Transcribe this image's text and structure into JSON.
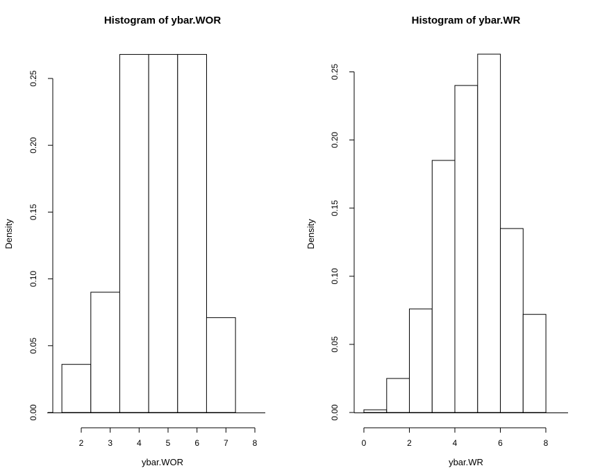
{
  "chart_data": [
    {
      "type": "bar",
      "title": "Histogram of ybar.WOR",
      "xlabel": "ybar.WOR",
      "ylabel": "Density",
      "x_ticks": [
        "2",
        "3",
        "4",
        "5",
        "6",
        "7",
        "8"
      ],
      "y_ticks": [
        "0.00",
        "0.05",
        "0.10",
        "0.15",
        "0.20",
        "0.25"
      ],
      "xlim": [
        1.5,
        8
      ],
      "ylim": [
        0,
        0.25
      ],
      "bins": [
        {
          "from": 1.33,
          "to": 2.33,
          "density": 0.036
        },
        {
          "from": 2.33,
          "to": 3.33,
          "density": 0.09
        },
        {
          "from": 3.33,
          "to": 4.33,
          "density": 0.268
        },
        {
          "from": 4.33,
          "to": 5.33,
          "density": 0.268
        },
        {
          "from": 5.33,
          "to": 6.33,
          "density": 0.268
        },
        {
          "from": 6.33,
          "to": 7.33,
          "density": 0.071
        }
      ]
    },
    {
      "type": "bar",
      "title": "Histogram of ybar.WR",
      "xlabel": "ybar.WR",
      "ylabel": "Density",
      "x_ticks": [
        "0",
        "2",
        "4",
        "6",
        "8"
      ],
      "y_ticks": [
        "0.00",
        "0.05",
        "0.10",
        "0.15",
        "0.20",
        "0.25"
      ],
      "xlim": [
        0,
        8
      ],
      "ylim": [
        0,
        0.25
      ],
      "bins": [
        {
          "from": 0,
          "to": 1,
          "density": 0.002
        },
        {
          "from": 1,
          "to": 2,
          "density": 0.025
        },
        {
          "from": 2,
          "to": 3,
          "density": 0.076
        },
        {
          "from": 3,
          "to": 4,
          "density": 0.185
        },
        {
          "from": 4,
          "to": 5,
          "density": 0.24
        },
        {
          "from": 5,
          "to": 6,
          "density": 0.263
        },
        {
          "from": 6,
          "to": 7,
          "density": 0.135
        },
        {
          "from": 7,
          "to": 8,
          "density": 0.072
        }
      ]
    }
  ]
}
